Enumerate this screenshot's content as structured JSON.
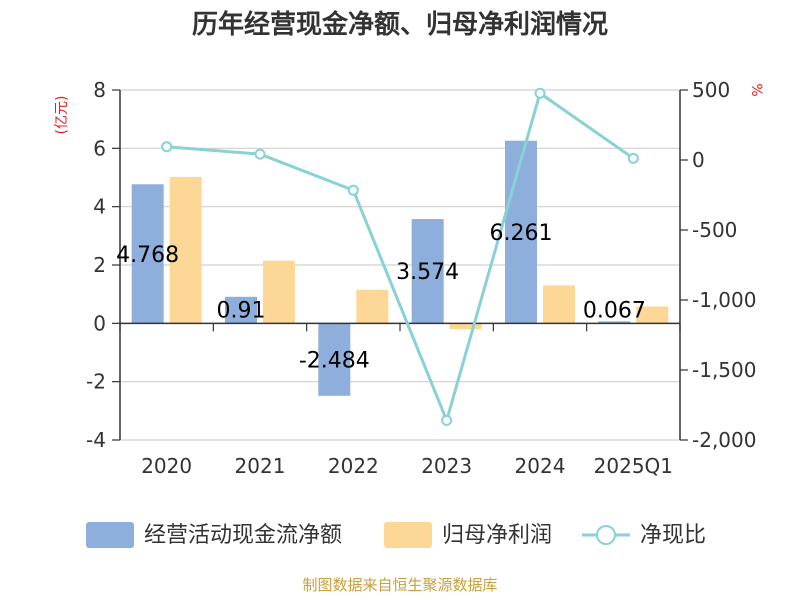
{
  "chart_data": {
    "type": "bar",
    "title": "历年经营现金净额、归母净利润情况",
    "categories": [
      "2020",
      "2021",
      "2022",
      "2023",
      "2024",
      "2025Q1"
    ],
    "left_axis": {
      "unit": "(亿元)",
      "ylim": [
        -4,
        8
      ],
      "ticks": [
        -4,
        -2,
        0,
        2,
        4,
        6,
        8
      ]
    },
    "right_axis": {
      "unit": "%",
      "ylim": [
        -2000,
        500
      ],
      "ticks": [
        -2000,
        -1500,
        -1000,
        -500,
        0,
        500
      ],
      "tick_labels": [
        "-2,000",
        "-1,500",
        "-1,000",
        "-500",
        "0",
        "500"
      ]
    },
    "series": [
      {
        "name": "经营活动现金流净额",
        "type": "bar",
        "axis": "left",
        "color": "#8eaedc",
        "values": [
          4.768,
          0.91,
          -2.484,
          3.574,
          6.261,
          0.067
        ],
        "labels": [
          "4.768",
          "0.91",
          "-2.484",
          "3.574",
          "6.261",
          "0.067"
        ]
      },
      {
        "name": "归母净利润",
        "type": "bar",
        "axis": "left",
        "color": "#fdd796",
        "values": [
          5.02,
          2.15,
          1.15,
          -0.2,
          1.3,
          0.58
        ]
      },
      {
        "name": "净现比",
        "type": "line",
        "axis": "right",
        "color": "#88d2d6",
        "values": [
          95,
          42,
          -216,
          -1860,
          477,
          12
        ]
      }
    ],
    "grid": true,
    "legend": "bottom",
    "source": "制图数据来自恒生聚源数据库"
  }
}
